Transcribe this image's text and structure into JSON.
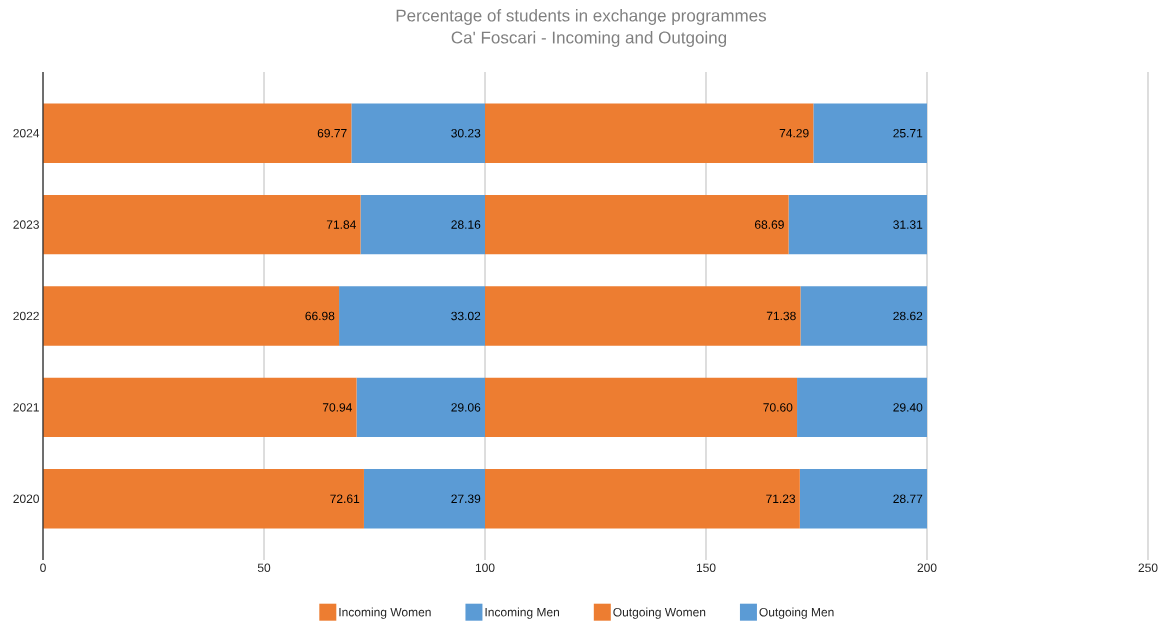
{
  "chart_data": {
    "type": "bar",
    "orientation": "horizontal",
    "stacked": true,
    "title": "Percentage of students in exchange programmes",
    "subtitle": "Ca' Foscari - Incoming and Outgoing",
    "categories": [
      "2024",
      "2023",
      "2022",
      "2021",
      "2020"
    ],
    "series": [
      {
        "name": "Incoming Women",
        "color": "#ed7d31",
        "values": [
          69.77,
          71.84,
          66.98,
          70.94,
          72.61
        ],
        "value_labels": [
          "69.77",
          "71.84",
          "66.98",
          "70.94",
          "72.61"
        ]
      },
      {
        "name": "Incoming Men",
        "color": "#5b9bd5",
        "values": [
          30.23,
          28.16,
          33.02,
          29.06,
          27.39
        ],
        "value_labels": [
          "30.23",
          "28.16",
          "33.02",
          "29.06",
          "27.39"
        ]
      },
      {
        "name": "Outgoing Women",
        "color": "#ed7d31",
        "values": [
          74.29,
          68.69,
          71.38,
          70.6,
          71.23
        ],
        "value_labels": [
          "74.29",
          "68.69",
          "71.38",
          "70.60",
          "71.23"
        ]
      },
      {
        "name": "Outgoing Men",
        "color": "#5b9bd5",
        "values": [
          25.71,
          31.31,
          28.62,
          29.4,
          28.77
        ],
        "value_labels": [
          "25.71",
          "31.31",
          "28.62",
          "29.40",
          "28.77"
        ]
      }
    ],
    "xlim": [
      0,
      250
    ],
    "xticks": [
      0,
      50,
      100,
      150,
      200,
      250
    ],
    "grid": "x",
    "legend": "bottom"
  }
}
